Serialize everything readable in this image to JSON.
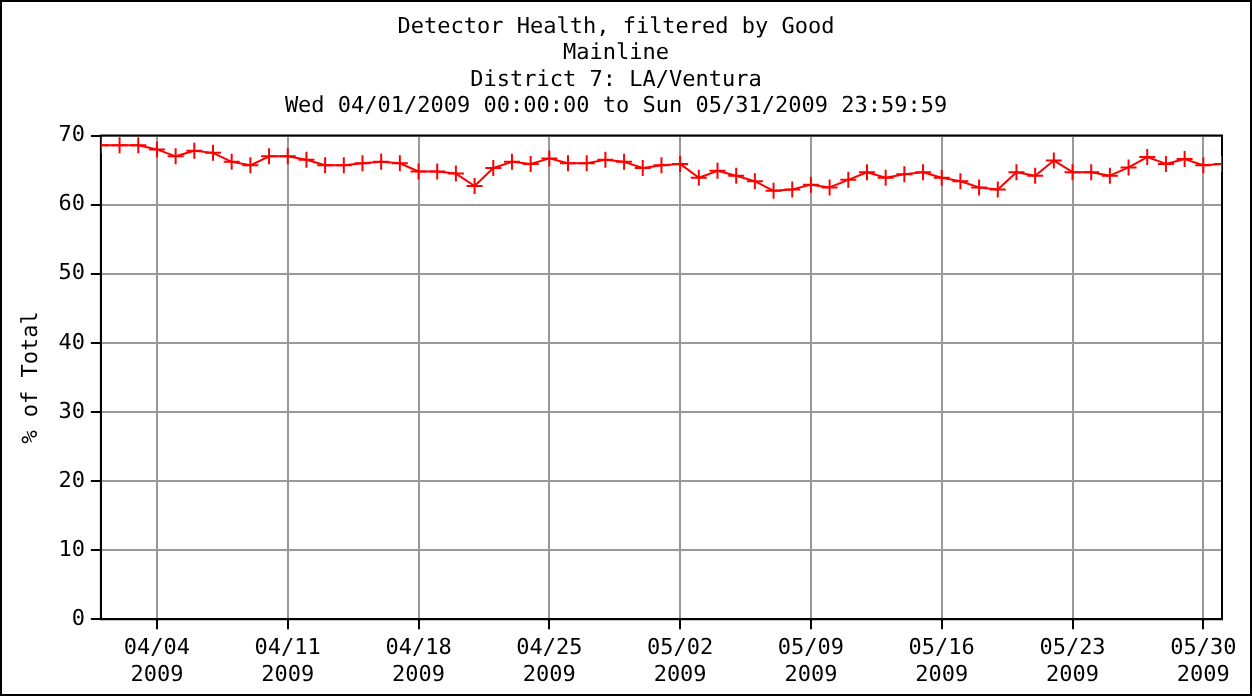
{
  "chart_data": {
    "type": "line",
    "title": "Detector Health, filtered by Good",
    "subtitle": "Mainline\nDistrict 7: LA/Ventura\nWed 04/01/2009 00:00:00 to Sun 05/31/2009 23:59:59",
    "ylabel": "% of Total",
    "x": [
      "2009-04-01",
      "2009-04-02",
      "2009-04-03",
      "2009-04-04",
      "2009-04-05",
      "2009-04-06",
      "2009-04-07",
      "2009-04-08",
      "2009-04-09",
      "2009-04-10",
      "2009-04-11",
      "2009-04-12",
      "2009-04-13",
      "2009-04-14",
      "2009-04-15",
      "2009-04-16",
      "2009-04-17",
      "2009-04-18",
      "2009-04-19",
      "2009-04-20",
      "2009-04-21",
      "2009-04-22",
      "2009-04-23",
      "2009-04-24",
      "2009-04-25",
      "2009-04-26",
      "2009-04-27",
      "2009-04-28",
      "2009-04-29",
      "2009-04-30",
      "2009-05-01",
      "2009-05-02",
      "2009-05-03",
      "2009-05-04",
      "2009-05-05",
      "2009-05-06",
      "2009-05-07",
      "2009-05-08",
      "2009-05-09",
      "2009-05-10",
      "2009-05-11",
      "2009-05-12",
      "2009-05-13",
      "2009-05-14",
      "2009-05-15",
      "2009-05-16",
      "2009-05-17",
      "2009-05-18",
      "2009-05-19",
      "2009-05-20",
      "2009-05-21",
      "2009-05-22",
      "2009-05-23",
      "2009-05-24",
      "2009-05-25",
      "2009-05-26",
      "2009-05-27",
      "2009-05-28",
      "2009-05-29",
      "2009-05-30",
      "2009-05-31"
    ],
    "series": [
      {
        "color": "#ff0000",
        "values": [
          68.6,
          68.6,
          68.6,
          68,
          67,
          67.8,
          67.5,
          66.2,
          65.7,
          67,
          67,
          66.5,
          65.7,
          65.7,
          66,
          66.2,
          66,
          64.8,
          64.8,
          64.5,
          62.7,
          65.3,
          66.2,
          65.9,
          66.7,
          66,
          66,
          66.5,
          66.2,
          65.3,
          65.7,
          65.9,
          63.9,
          64.9,
          64.2,
          63.4,
          62,
          62.2,
          62.9,
          62.5,
          63.6,
          64.7,
          63.9,
          64.4,
          64.7,
          63.9,
          63.4,
          62.5,
          62.2,
          64.7,
          64.2,
          66.4,
          64.7,
          64.7,
          64.2,
          65.4,
          66.9,
          65.9,
          66.6,
          65.7,
          65.9
        ]
      }
    ],
    "xlim": [
      "2009-04-01",
      "2009-05-31"
    ],
    "xticks": [
      {
        "value": "2009-04-04",
        "label": "04/04\n2009"
      },
      {
        "value": "2009-04-11",
        "label": "04/11\n2009"
      },
      {
        "value": "2009-04-18",
        "label": "04/18\n2009"
      },
      {
        "value": "2009-04-25",
        "label": "04/25\n2009"
      },
      {
        "value": "2009-05-02",
        "label": "05/02\n2009"
      },
      {
        "value": "2009-05-09",
        "label": "05/09\n2009"
      },
      {
        "value": "2009-05-16",
        "label": "05/16\n2009"
      },
      {
        "value": "2009-05-23",
        "label": "05/23\n2009"
      },
      {
        "value": "2009-05-30",
        "label": "05/30\n2009"
      }
    ],
    "ylim": [
      0,
      70
    ],
    "yticks": [
      0,
      10,
      20,
      30,
      40,
      50,
      60,
      70
    ],
    "grid": true,
    "legend": false,
    "marker": "cross",
    "line_style": "solid"
  }
}
